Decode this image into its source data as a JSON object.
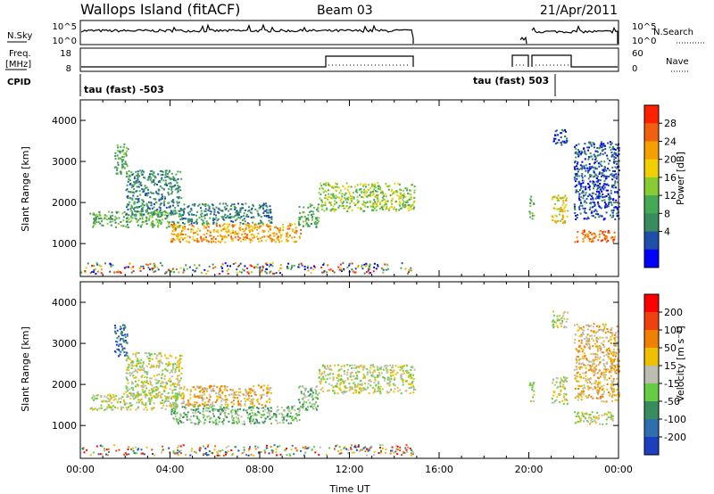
{
  "header": {
    "title": "Wallops Island (fitACF)",
    "beam": "Beam 03",
    "date": "21/Apr/2011"
  },
  "aux": {
    "nsky_label": "N.Sky",
    "nsky_ticks": [
      "10^5",
      "10^0"
    ],
    "nsearch_label": "N.Search",
    "freq_label_line1": "Freq.",
    "freq_label_line2": "[MHz]",
    "freq_ticks": [
      "18",
      "8"
    ],
    "nave_ticks": [
      "60",
      "0"
    ],
    "nave_label": "Nave",
    "cpid_label": "CPID",
    "cpid_entries": [
      "tau (fast) -503",
      "tau (fast) 503"
    ]
  },
  "colorbars": {
    "power": {
      "label": "Power [dB]",
      "ticks": [
        "28",
        "24",
        "20",
        "16",
        "12",
        "8",
        "4"
      ],
      "colors": [
        "#0000ff",
        "#1f4fa8",
        "#3a8c5e",
        "#44aa55",
        "#88cc33",
        "#f0d000",
        "#f5a000",
        "#f06010",
        "#ff2000"
      ]
    },
    "velocity": {
      "label": "Velocity [m s⁻¹]",
      "ticks": [
        "200",
        "100",
        "50",
        "15",
        "-15",
        "-50",
        "-100",
        "-200"
      ],
      "colors": [
        "#1c3fc0",
        "#2f6fb0",
        "#3a8c5e",
        "#66cc44",
        "#bcbcb0",
        "#f0c000",
        "#f08000",
        "#f04010",
        "#ff0000"
      ]
    }
  },
  "chart_data": [
    {
      "type": "heatmap",
      "name": "power",
      "ylabel": "Slant Range [km]",
      "yticks": [
        "4000",
        "3000",
        "2000",
        "1000"
      ],
      "ylim": [
        200,
        4500
      ],
      "xlim": [
        0,
        24
      ],
      "regions": [
        {
          "t0": 0.4,
          "t1": 4.5,
          "r0": 1400,
          "r1": 1800,
          "level": 3
        },
        {
          "t0": 2.0,
          "t1": 4.5,
          "r0": 1700,
          "r1": 2800,
          "level": 2
        },
        {
          "t0": 1.5,
          "t1": 2.1,
          "r0": 2700,
          "r1": 3500,
          "level": 3
        },
        {
          "t0": 4.0,
          "t1": 9.8,
          "r0": 1050,
          "r1": 1500,
          "level": 6
        },
        {
          "t0": 4.5,
          "t1": 8.5,
          "r0": 1500,
          "r1": 2000,
          "level": 2
        },
        {
          "t0": 9.7,
          "t1": 10.6,
          "r0": 1400,
          "r1": 2000,
          "level": 3
        },
        {
          "t0": 10.6,
          "t1": 14.9,
          "r0": 1800,
          "r1": 2500,
          "level": 4
        },
        {
          "t0": 20.0,
          "t1": 20.2,
          "r0": 1600,
          "r1": 2200,
          "level": 3
        },
        {
          "t0": 21.0,
          "t1": 21.7,
          "r0": 1500,
          "r1": 2200,
          "level": 5
        },
        {
          "t0": 21.0,
          "t1": 21.7,
          "r0": 3400,
          "r1": 3800,
          "level": 1
        },
        {
          "t0": 22.0,
          "t1": 23.8,
          "r0": 1050,
          "r1": 1350,
          "level": 7
        },
        {
          "t0": 22.0,
          "t1": 24.0,
          "r0": 1600,
          "r1": 3500,
          "level": 1
        }
      ]
    },
    {
      "type": "heatmap",
      "name": "velocity",
      "ylabel": "Slant Range [km]",
      "yticks": [
        "4000",
        "3000",
        "2000",
        "1000"
      ],
      "xlabel": "Time UT",
      "xticks": [
        "00:00",
        "04:00",
        "08:00",
        "12:00",
        "16:00",
        "20:00",
        "00:00"
      ],
      "xtick_values": [
        0,
        4,
        8,
        12,
        16,
        20,
        24
      ],
      "ylim": [
        200,
        4500
      ],
      "xlim": [
        0,
        24
      ],
      "regions": [
        {
          "t0": 0.4,
          "t1": 4.5,
          "r0": 1400,
          "r1": 1800,
          "level": 4
        },
        {
          "t0": 2.0,
          "t1": 4.5,
          "r0": 1700,
          "r1": 2800,
          "level": 4
        },
        {
          "t0": 1.5,
          "t1": 2.1,
          "r0": 2700,
          "r1": 3500,
          "level": 1
        },
        {
          "t0": 4.0,
          "t1": 9.8,
          "r0": 1050,
          "r1": 1500,
          "level": 3
        },
        {
          "t0": 4.5,
          "t1": 8.5,
          "r0": 1500,
          "r1": 2000,
          "level": 5
        },
        {
          "t0": 9.7,
          "t1": 10.6,
          "r0": 1400,
          "r1": 2000,
          "level": 3
        },
        {
          "t0": 10.6,
          "t1": 14.9,
          "r0": 1800,
          "r1": 2500,
          "level": 4
        },
        {
          "t0": 20.0,
          "t1": 20.2,
          "r0": 1600,
          "r1": 2200,
          "level": 4
        },
        {
          "t0": 21.0,
          "t1": 21.7,
          "r0": 1500,
          "r1": 2200,
          "level": 4
        },
        {
          "t0": 21.0,
          "t1": 21.7,
          "r0": 3400,
          "r1": 3800,
          "level": 4
        },
        {
          "t0": 22.0,
          "t1": 23.8,
          "r0": 1050,
          "r1": 1350,
          "level": 4
        },
        {
          "t0": 22.0,
          "t1": 24.0,
          "r0": 1600,
          "r1": 3500,
          "level": 5
        }
      ]
    }
  ]
}
